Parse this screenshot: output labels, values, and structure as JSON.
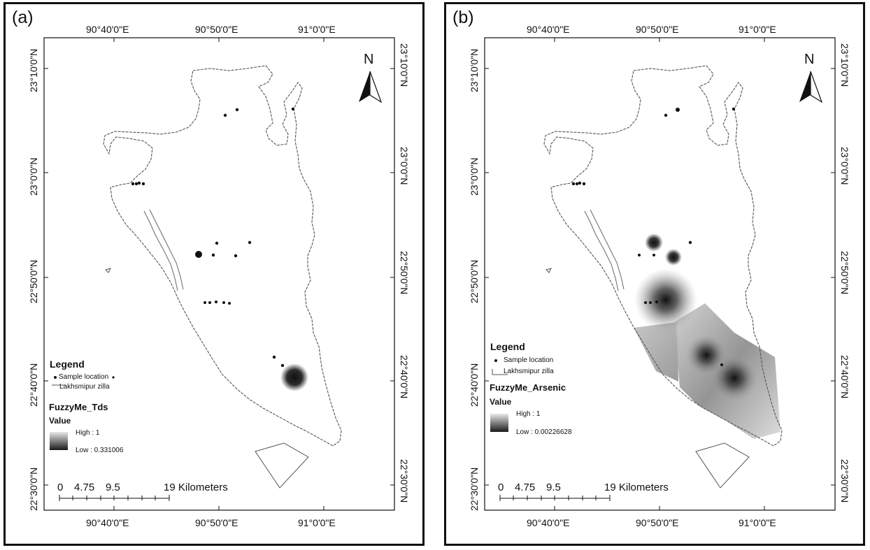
{
  "panels": [
    {
      "tag": "(a)",
      "lon_ticks": [
        "90°40'0\"E",
        "90°50'0\"E",
        "91°0'0\"E"
      ],
      "lat_ticks": [
        "23°10'0\"N",
        "23°0'0\"N",
        "22°50'0\"N",
        "22°40'0\"N",
        "22°30'0\"N"
      ],
      "north": "N",
      "legend_title": "Legend",
      "sample_label": "Sample location",
      "boundary_label": "Lakhsmipur zilla",
      "layer_title": "FuzzyMe_Tds",
      "value_title": "Value",
      "high_label": "High : 1",
      "low_label": "Low : 0.331006",
      "scale_numbers": [
        "0",
        "4.75",
        "9.5"
      ],
      "scale_end": "19 Kilometers"
    },
    {
      "tag": "(b)",
      "lon_ticks": [
        "90°40'0\"E",
        "90°50'0\"E",
        "91°0'0\"E"
      ],
      "lat_ticks": [
        "23°10'0\"N",
        "23°0'0\"N",
        "22°50'0\"N",
        "22°40'0\"N",
        "22°30'0\"N"
      ],
      "north": "N",
      "legend_title": "Legend",
      "sample_label": "Sample location",
      "boundary_label": "Lakhsmipur zilla",
      "layer_title": "FuzzyMe_Arsenic",
      "value_title": "Value",
      "high_label": "High : 1",
      "low_label": "Low : 0.00226628",
      "scale_numbers": [
        "0",
        "4.75",
        "9.5"
      ],
      "scale_end": "19 Kilometers"
    }
  ],
  "colors": {
    "frame": "#111111",
    "boundary": "#555555",
    "point": "#111111",
    "high": "#e9e9e9",
    "low": "#1a1a1a"
  }
}
